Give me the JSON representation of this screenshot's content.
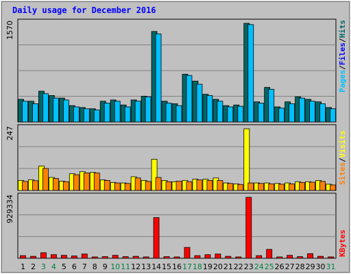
{
  "title": "Daily usage for December 2016",
  "colors": {
    "background": "#c0c0c0",
    "plot": "#c0c0c0",
    "hits": "#006666",
    "files": "#0000ff",
    "pages": "#00c0ff",
    "visits": "#ffff00",
    "sites": "#ff8000",
    "kbytes": "#ff0000",
    "weekend_day": "#008040",
    "weekday_day": "#000000"
  },
  "legend": {
    "hits": "Hits",
    "files": "Files",
    "pages": "Pages",
    "visits": "Visits",
    "sites": "Sites",
    "kbytes": "KBytes",
    "sep": "/"
  },
  "chart_data": {
    "type": "bar",
    "categories": [
      "1",
      "2",
      "3",
      "4",
      "5",
      "6",
      "7",
      "8",
      "9",
      "10",
      "11",
      "12",
      "13",
      "14",
      "15",
      "16",
      "17",
      "18",
      "19",
      "20",
      "21",
      "22",
      "23",
      "24",
      "25",
      "26",
      "27",
      "28",
      "29",
      "30",
      "31"
    ],
    "weekend_days": [
      "3",
      "4",
      "10",
      "11",
      "17",
      "18",
      "24",
      "25",
      "31"
    ],
    "panels": [
      {
        "id": "hits_files_pages",
        "ymax_label": "1570",
        "ylim": [
          0,
          1570
        ],
        "series": [
          {
            "name": "Hits",
            "values": [
              360,
              330,
              490,
              420,
              380,
              260,
              230,
              210,
              330,
              350,
              270,
              350,
              410,
              1440,
              330,
              290,
              760,
              650,
              440,
              360,
              260,
              270,
              1570,
              320,
              550,
              240,
              320,
              400,
              360,
              320,
              230
            ]
          },
          {
            "name": "Files",
            "values": [
              330,
              290,
              450,
              380,
              350,
              240,
              210,
              190,
              300,
              330,
              240,
              330,
              400,
              1400,
              300,
              260,
              740,
              600,
              420,
              330,
              240,
              250,
              1550,
              300,
              520,
              220,
              290,
              380,
              330,
              290,
              210
            ]
          }
        ]
      },
      {
        "id": "visits_sites",
        "ymax_label": "247",
        "ylim": [
          0,
          247
        ],
        "series": [
          {
            "name": "Visits",
            "values": [
              40,
              43,
              98,
              52,
              37,
              67,
              75,
              72,
              42,
              32,
              30,
              55,
              40,
              125,
              40,
              35,
              40,
              45,
              45,
              50,
              30,
              26,
              247,
              30,
              30,
              28,
              30,
              35,
              35,
              40,
              25
            ]
          },
          {
            "name": "Sites",
            "values": [
              36,
              39,
              88,
              48,
              35,
              63,
              70,
              70,
              40,
              30,
              28,
              50,
              36,
              52,
              35,
              37,
              35,
              42,
              40,
              40,
              28,
              24,
              30,
              28,
              26,
              25,
              26,
              32,
              33,
              36,
              22
            ]
          }
        ]
      },
      {
        "id": "kbytes",
        "ymax_label": "929334",
        "ylim": [
          0,
          929334
        ],
        "series": [
          {
            "name": "KBytes",
            "values": [
              40000,
              30000,
              85000,
              55000,
              45000,
              35000,
              65000,
              20000,
              25000,
              45000,
              25000,
              30000,
              20000,
              620000,
              25000,
              20000,
              165000,
              40000,
              55000,
              65000,
              30000,
              20000,
              929334,
              40000,
              135000,
              20000,
              45000,
              25000,
              70000,
              30000,
              15000
            ]
          }
        ]
      }
    ]
  }
}
